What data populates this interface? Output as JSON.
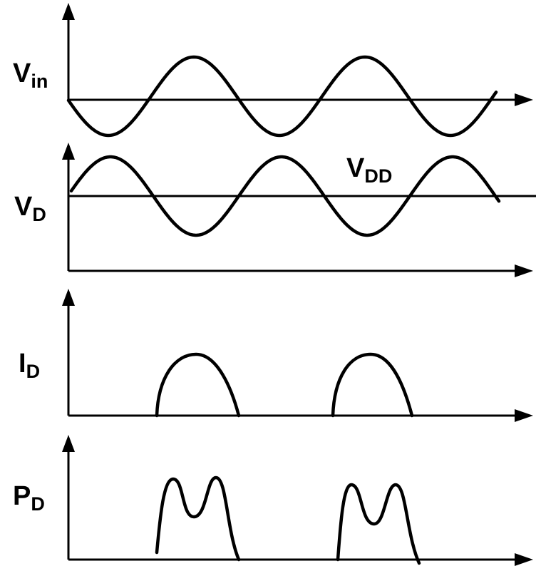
{
  "labels": {
    "vin": {
      "main": "V",
      "sub": "in"
    },
    "vd": {
      "main": "V",
      "sub": "D"
    },
    "vdd": {
      "main": "V",
      "sub": "DD"
    },
    "id": {
      "main": "I",
      "sub": "D"
    },
    "pd": {
      "main": "P",
      "sub": "D"
    }
  }
}
